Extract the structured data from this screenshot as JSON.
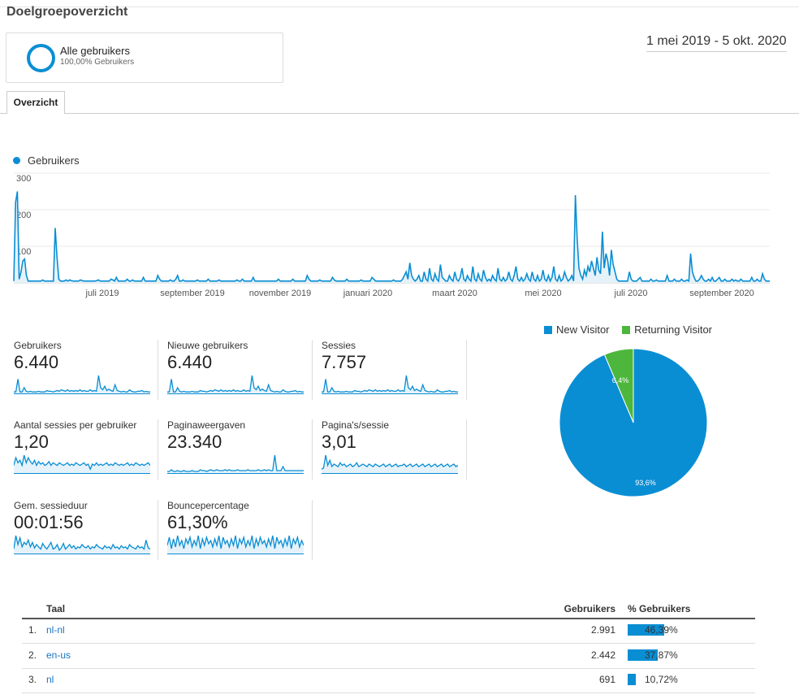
{
  "header": {
    "title": "Doelgroepoverzicht",
    "date_range": "1 mei 2019 - 5 okt. 2020"
  },
  "segment": {
    "name": "Alle gebruikers",
    "subtitle": "100,00% Gebruikers"
  },
  "tabs": [
    {
      "label": "Overzicht",
      "active": true
    }
  ],
  "colors": {
    "accent": "#0a8ed3",
    "returning": "#4db63c"
  },
  "chart_data": [
    {
      "type": "line",
      "series": [
        {
          "name": "Gebruikers",
          "color": "#0a8ed3"
        }
      ],
      "ylim": [
        0,
        300
      ],
      "y_ticks": [
        "100",
        "200",
        "300"
      ],
      "x_ticks": [
        "juli 2019",
        "september 2019",
        "november 2019",
        "januari 2020",
        "maart 2020",
        "mei 2020",
        "juli 2020",
        "september 2020"
      ],
      "y_ticks_values": [
        100,
        200,
        300
      ],
      "values": [
        5,
        220,
        250,
        10,
        30,
        60,
        65,
        20,
        5,
        5,
        5,
        5,
        5,
        5,
        5,
        5,
        8,
        5,
        5,
        5,
        5,
        5,
        5,
        150,
        70,
        10,
        5,
        5,
        5,
        8,
        5,
        8,
        6,
        5,
        5,
        5,
        5,
        8,
        6,
        5,
        5,
        5,
        5,
        5,
        5,
        5,
        6,
        8,
        5,
        5,
        5,
        5,
        5,
        5,
        10,
        8,
        5,
        15,
        5,
        5,
        5,
        5,
        5,
        10,
        5,
        5,
        8,
        5,
        5,
        5,
        5,
        5,
        15,
        5,
        5,
        5,
        5,
        5,
        5,
        5,
        20,
        10,
        5,
        5,
        5,
        5,
        5,
        8,
        5,
        5,
        10,
        20,
        5,
        5,
        8,
        5,
        5,
        5,
        5,
        5,
        5,
        5,
        8,
        5,
        5,
        5,
        5,
        5,
        10,
        5,
        5,
        5,
        5,
        5,
        8,
        5,
        5,
        5,
        5,
        5,
        5,
        5,
        5,
        5,
        8,
        5,
        5,
        10,
        5,
        5,
        5,
        5,
        5,
        15,
        5,
        5,
        5,
        5,
        5,
        5,
        5,
        5,
        5,
        5,
        5,
        5,
        5,
        10,
        5,
        5,
        5,
        5,
        5,
        5,
        5,
        10,
        5,
        5,
        5,
        5,
        5,
        5,
        5,
        20,
        10,
        5,
        5,
        5,
        5,
        5,
        8,
        5,
        5,
        5,
        5,
        5,
        5,
        15,
        8,
        5,
        5,
        5,
        5,
        5,
        5,
        10,
        5,
        5,
        5,
        5,
        5,
        5,
        5,
        8,
        5,
        5,
        5,
        5,
        5,
        15,
        10,
        5,
        5,
        5,
        5,
        5,
        5,
        5,
        5,
        5,
        5,
        8,
        5,
        5,
        5,
        5,
        10,
        20,
        30,
        10,
        55,
        20,
        10,
        5,
        10,
        20,
        5,
        5,
        30,
        10,
        5,
        40,
        10,
        5,
        25,
        10,
        5,
        50,
        15,
        10,
        5,
        5,
        20,
        10,
        5,
        30,
        10,
        5,
        15,
        40,
        10,
        5,
        20,
        10,
        5,
        45,
        10,
        5,
        25,
        10,
        5,
        35,
        15,
        5,
        10,
        5,
        20,
        10,
        5,
        40,
        10,
        5,
        15,
        5,
        10,
        30,
        10,
        5,
        20,
        45,
        10,
        5,
        15,
        5,
        10,
        25,
        10,
        5,
        30,
        10,
        5,
        20,
        5,
        10,
        35,
        10,
        5,
        20,
        5,
        15,
        45,
        10,
        5,
        20,
        5,
        10,
        30,
        15,
        5,
        10,
        20,
        5,
        240,
        120,
        40,
        20,
        10,
        35,
        20,
        45,
        30,
        60,
        40,
        20,
        70,
        35,
        25,
        140,
        40,
        80,
        60,
        20,
        90,
        50,
        30,
        10,
        5,
        5,
        5,
        5,
        5,
        5,
        30,
        10,
        5,
        5,
        5,
        10,
        15,
        5,
        5,
        5,
        5,
        5,
        10,
        5,
        5,
        8,
        5,
        5,
        5,
        5,
        5,
        20,
        5,
        5,
        5,
        10,
        5,
        5,
        5,
        10,
        5,
        5,
        8,
        5,
        80,
        30,
        15,
        5,
        5,
        10,
        20,
        10,
        5,
        5,
        10,
        5,
        15,
        5,
        5,
        10,
        15,
        5,
        5,
        10,
        5,
        5,
        5,
        10,
        5,
        8,
        5,
        5,
        10,
        5,
        5,
        5,
        5,
        5,
        15,
        5,
        5,
        10,
        5,
        5,
        25,
        10,
        5,
        5,
        5
      ]
    },
    {
      "type": "pie",
      "legend_placement": "top",
      "categories": [
        "New Visitor",
        "Returning Visitor"
      ],
      "values": [
        93.6,
        6.4
      ],
      "labels": [
        "93,6%",
        "6,4%"
      ],
      "colors": [
        "#0a8ed3",
        "#4db63c"
      ]
    }
  ],
  "metrics": [
    {
      "label": "Gebruikers",
      "value": "6.440",
      "spark": [
        2,
        2,
        20,
        2,
        2,
        8,
        3,
        2,
        3,
        2,
        2,
        2,
        3,
        2,
        2,
        2,
        4,
        3,
        3,
        2,
        3,
        4,
        3,
        5,
        4,
        3,
        5,
        3,
        4,
        3,
        4,
        3,
        5,
        3,
        4,
        3,
        3,
        5,
        3,
        4,
        3,
        25,
        8,
        5,
        10,
        4,
        6,
        4,
        3,
        12,
        4,
        3,
        2,
        3,
        2,
        2,
        5,
        3,
        2,
        2,
        3,
        3,
        4,
        2,
        3,
        2,
        2
      ]
    },
    {
      "label": "Nieuwe gebruikers",
      "value": "6.440",
      "spark": [
        2,
        2,
        20,
        2,
        2,
        8,
        3,
        2,
        3,
        2,
        2,
        2,
        3,
        2,
        2,
        2,
        4,
        3,
        3,
        2,
        3,
        4,
        3,
        5,
        4,
        3,
        5,
        3,
        4,
        3,
        4,
        3,
        5,
        3,
        4,
        3,
        3,
        5,
        3,
        4,
        3,
        25,
        8,
        5,
        10,
        4,
        6,
        4,
        3,
        12,
        4,
        3,
        2,
        3,
        2,
        2,
        5,
        3,
        2,
        2,
        3,
        3,
        4,
        2,
        3,
        2,
        2
      ]
    },
    {
      "label": "Sessies",
      "value": "7.757",
      "spark": [
        2,
        2,
        20,
        2,
        2,
        8,
        3,
        2,
        3,
        2,
        2,
        2,
        3,
        2,
        2,
        2,
        4,
        3,
        3,
        2,
        3,
        4,
        3,
        5,
        4,
        3,
        5,
        3,
        4,
        3,
        4,
        3,
        5,
        3,
        4,
        3,
        3,
        5,
        3,
        4,
        3,
        25,
        8,
        5,
        10,
        4,
        6,
        4,
        3,
        12,
        4,
        3,
        2,
        3,
        2,
        2,
        5,
        3,
        2,
        2,
        3,
        3,
        4,
        2,
        3,
        2,
        2
      ]
    },
    {
      "label": "Aantal sessies per gebruiker",
      "value": "1,20",
      "spark": [
        6,
        12,
        8,
        10,
        6,
        14,
        8,
        12,
        9,
        7,
        10,
        6,
        9,
        7,
        8,
        6,
        7,
        9,
        6,
        8,
        7,
        6,
        8,
        7,
        6,
        7,
        8,
        6,
        7,
        6,
        8,
        7,
        6,
        7,
        8,
        6,
        7,
        3,
        7,
        6,
        8,
        6,
        7,
        6,
        7,
        8,
        6,
        7,
        6,
        8,
        7,
        6,
        7,
        6,
        7,
        8,
        6,
        7,
        6,
        8,
        7,
        6,
        7,
        6,
        7,
        8,
        6
      ]
    },
    {
      "label": "Paginaweergaven",
      "value": "23.340",
      "spark": [
        2,
        2,
        4,
        2,
        2,
        3,
        2,
        2,
        3,
        2,
        2,
        2,
        3,
        2,
        2,
        2,
        4,
        3,
        3,
        2,
        3,
        4,
        3,
        3,
        4,
        3,
        3,
        3,
        4,
        3,
        4,
        3,
        3,
        3,
        4,
        3,
        3,
        3,
        3,
        4,
        3,
        3,
        3,
        3,
        4,
        3,
        3,
        4,
        3,
        4,
        3,
        3,
        22,
        3,
        3,
        3,
        8,
        3,
        3,
        3,
        3,
        3,
        3,
        3,
        3,
        3,
        3
      ]
    },
    {
      "label": "Pagina's/sessie",
      "value": "3,01",
      "spark": [
        3,
        4,
        14,
        6,
        10,
        5,
        7,
        6,
        5,
        8,
        6,
        7,
        5,
        6,
        7,
        5,
        6,
        8,
        5,
        6,
        7,
        6,
        5,
        7,
        6,
        5,
        7,
        6,
        5,
        6,
        7,
        5,
        6,
        7,
        5,
        6,
        7,
        5,
        6,
        6,
        7,
        5,
        6,
        7,
        5,
        6,
        7,
        5,
        6,
        7,
        5,
        6,
        7,
        5,
        6,
        7,
        5,
        6,
        7,
        5,
        6,
        7,
        5,
        6,
        7,
        5,
        6
      ]
    },
    {
      "label": "Gem. sessieduur",
      "value": "00:01:56",
      "spark": [
        4,
        16,
        8,
        14,
        6,
        10,
        8,
        12,
        6,
        10,
        5,
        8,
        6,
        4,
        9,
        6,
        4,
        7,
        10,
        4,
        5,
        8,
        3,
        5,
        9,
        4,
        6,
        8,
        5,
        7,
        4,
        6,
        5,
        8,
        6,
        5,
        7,
        4,
        6,
        5,
        8,
        6,
        5,
        4,
        7,
        5,
        6,
        4,
        8,
        5,
        6,
        4,
        7,
        5,
        6,
        4,
        8,
        6,
        5,
        4,
        7,
        5,
        6,
        4,
        12,
        5,
        4
      ]
    },
    {
      "label": "Bouncepercentage",
      "value": "61,30%",
      "spark": [
        10,
        20,
        6,
        18,
        8,
        22,
        10,
        16,
        6,
        18,
        12,
        20,
        8,
        16,
        10,
        22,
        6,
        18,
        10,
        20,
        12,
        16,
        8,
        18,
        10,
        22,
        6,
        20,
        12,
        16,
        8,
        18,
        10,
        22,
        6,
        18,
        12,
        20,
        8,
        16,
        10,
        22,
        6,
        18,
        10,
        20,
        12,
        16,
        8,
        18,
        10,
        22,
        6,
        20,
        12,
        16,
        8,
        18,
        10,
        22,
        6,
        18,
        12,
        20,
        8,
        16,
        10
      ]
    }
  ],
  "table": {
    "headers": {
      "col1": "Taal",
      "col2": "Gebruikers",
      "col3": "% Gebruikers"
    },
    "rows": [
      {
        "rank": "1.",
        "lang": "nl-nl",
        "users": "2.991",
        "pct": "46,39%",
        "fraction": 0.4639
      },
      {
        "rank": "2.",
        "lang": "en-us",
        "users": "2.442",
        "pct": "37,87%",
        "fraction": 0.3787
      },
      {
        "rank": "3.",
        "lang": "nl",
        "users": "691",
        "pct": "10,72%",
        "fraction": 0.1072
      }
    ]
  }
}
